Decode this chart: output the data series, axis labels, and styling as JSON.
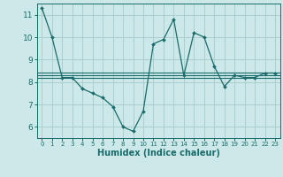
{
  "xlabel": "Humidex (Indice chaleur)",
  "bg_color": "#cce8e8",
  "line_color": "#1a6b6b",
  "grid_color": "#aacece",
  "main_x": [
    0,
    1,
    2,
    3,
    4,
    5,
    6,
    7,
    8,
    9,
    10,
    11,
    12,
    13,
    14,
    15,
    16,
    17,
    18,
    19,
    20,
    21,
    22,
    23
  ],
  "main_y": [
    11.3,
    10.0,
    8.2,
    8.2,
    7.7,
    7.5,
    7.3,
    6.9,
    6.0,
    5.8,
    6.7,
    9.7,
    9.9,
    10.8,
    8.3,
    10.2,
    10.0,
    8.7,
    7.8,
    8.3,
    8.2,
    8.2,
    8.4,
    8.4
  ],
  "hlines_y": [
    8.42,
    8.3,
    8.2
  ],
  "xlim": [
    -0.5,
    23.5
  ],
  "ylim": [
    5.5,
    11.5
  ],
  "yticks": [
    6,
    7,
    8,
    9,
    10,
    11
  ],
  "xticks": [
    0,
    1,
    2,
    3,
    4,
    5,
    6,
    7,
    8,
    9,
    10,
    11,
    12,
    13,
    14,
    15,
    16,
    17,
    18,
    19,
    20,
    21,
    22,
    23
  ]
}
